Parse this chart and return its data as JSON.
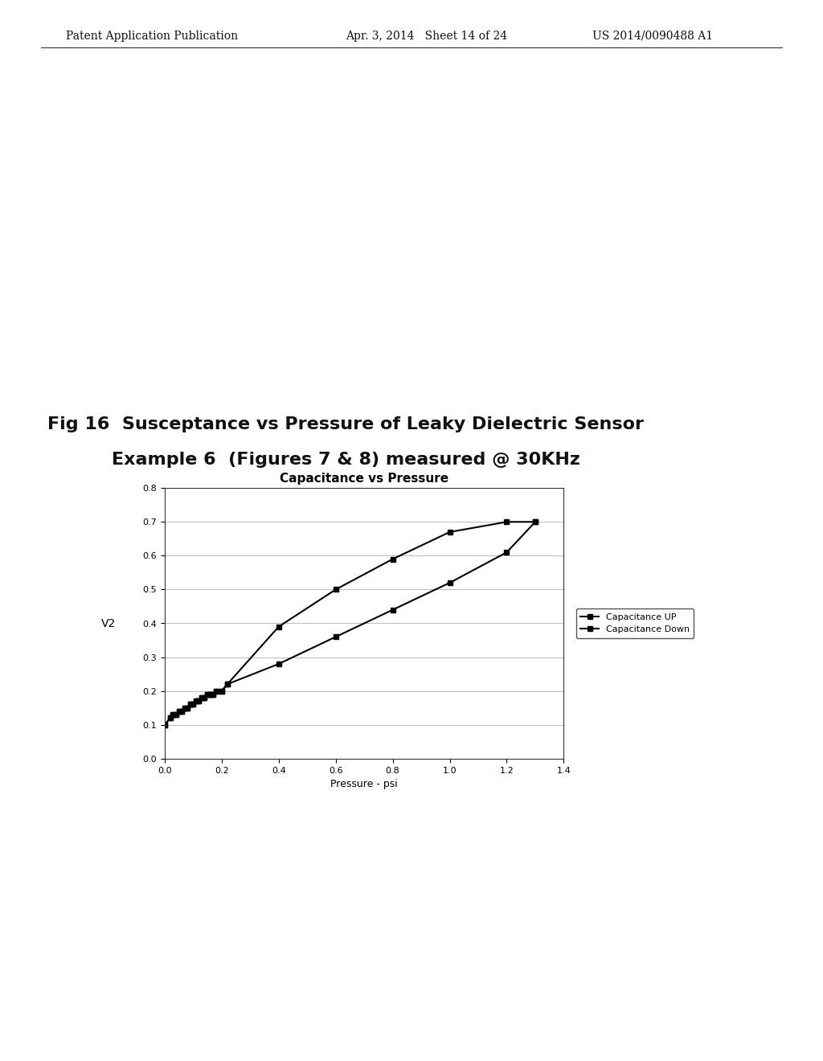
{
  "title_main_line1": "Fig 16  Susceptance vs Pressure of Leaky Dielectric Sensor",
  "title_main_line2": "Example 6  (Figures 7 & 8) measured @ 30KHz",
  "chart_title": "Capacitance vs Pressure",
  "xlabel": "Pressure - psi",
  "ylabel_left": "V2",
  "xlim": [
    0,
    1.4
  ],
  "ylim": [
    0,
    0.8
  ],
  "xticks": [
    0,
    0.2,
    0.4,
    0.6,
    0.8,
    1.0,
    1.2,
    1.4
  ],
  "yticks": [
    0,
    0.1,
    0.2,
    0.3,
    0.4,
    0.5,
    0.6,
    0.7,
    0.8
  ],
  "cap_up_x": [
    0.0,
    0.02,
    0.03,
    0.04,
    0.05,
    0.06,
    0.07,
    0.08,
    0.09,
    0.1,
    0.11,
    0.12,
    0.13,
    0.14,
    0.15,
    0.16,
    0.17,
    0.18,
    0.2,
    0.22,
    0.4,
    0.6,
    0.8,
    1.0,
    1.2,
    1.3
  ],
  "cap_up_y": [
    0.1,
    0.12,
    0.13,
    0.13,
    0.14,
    0.14,
    0.15,
    0.15,
    0.16,
    0.16,
    0.17,
    0.17,
    0.18,
    0.18,
    0.19,
    0.19,
    0.19,
    0.2,
    0.2,
    0.22,
    0.39,
    0.5,
    0.59,
    0.67,
    0.7,
    0.7
  ],
  "cap_down_x": [
    0.0,
    0.02,
    0.03,
    0.04,
    0.05,
    0.06,
    0.07,
    0.08,
    0.09,
    0.1,
    0.11,
    0.12,
    0.13,
    0.14,
    0.15,
    0.16,
    0.17,
    0.18,
    0.2,
    0.22,
    0.4,
    0.6,
    0.8,
    1.0,
    1.2,
    1.3
  ],
  "cap_down_y": [
    0.1,
    0.12,
    0.13,
    0.13,
    0.14,
    0.14,
    0.15,
    0.15,
    0.16,
    0.16,
    0.17,
    0.17,
    0.18,
    0.18,
    0.19,
    0.19,
    0.19,
    0.2,
    0.2,
    0.22,
    0.28,
    0.36,
    0.44,
    0.52,
    0.61,
    0.7
  ],
  "header_left": "Patent Application Publication",
  "header_mid": "Apr. 3, 2014   Sheet 14 of 24",
  "header_right": "US 2014/0090488 A1",
  "line_color": "#000000",
  "background_color": "#ffffff",
  "grid_color": "#bbbbbb",
  "legend_cap_up": "Capacitance UP",
  "legend_cap_down": "Capacitance Down",
  "header_fontsize": 10,
  "title_fontsize": 16,
  "chart_title_fontsize": 11,
  "axis_label_fontsize": 9,
  "tick_fontsize": 8,
  "legend_fontsize": 8
}
